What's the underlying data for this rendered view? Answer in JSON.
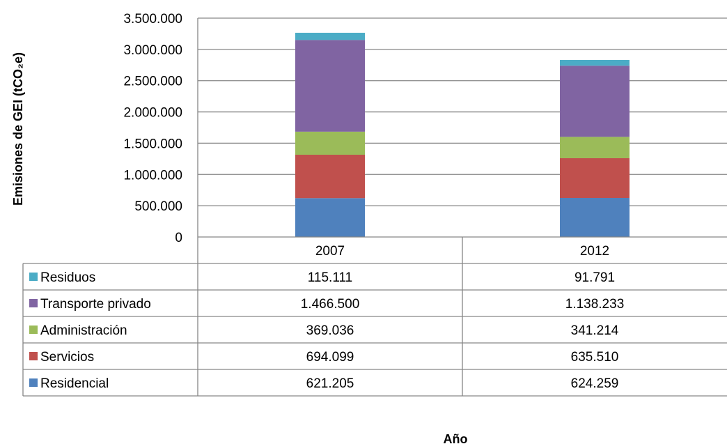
{
  "chart_data": {
    "type": "bar",
    "stacked": true,
    "ylabel": "Emisiones de GEI (tCO₂e)",
    "xlabel": "Año",
    "ylim": [
      0,
      3500000
    ],
    "yticks": [
      0,
      500000,
      1000000,
      1500000,
      2000000,
      2500000,
      3000000,
      3500000
    ],
    "ytick_labels": [
      "0",
      "500.000",
      "1.000.000",
      "1.500.000",
      "2.000.000",
      "2.500.000",
      "3.000.000",
      "3.500.000"
    ],
    "grid": true,
    "legend": "data-table",
    "categories": [
      "2007",
      "2012"
    ],
    "series": [
      {
        "name": "Residencial",
        "color": "#4F81BD",
        "values": [
          621205,
          624259
        ],
        "labels": [
          "621.205",
          "624.259"
        ]
      },
      {
        "name": "Servicios",
        "color": "#C0504D",
        "values": [
          694099,
          635510
        ],
        "labels": [
          "694.099",
          "635.510"
        ]
      },
      {
        "name": "Administración",
        "color": "#9BBB59",
        "values": [
          369036,
          341214
        ],
        "labels": [
          "369.036",
          "341.214"
        ]
      },
      {
        "name": "Transporte privado",
        "color": "#8064A2",
        "values": [
          1466500,
          1138233
        ],
        "labels": [
          "1.466.500",
          "1.138.233"
        ]
      },
      {
        "name": "Residuos",
        "color": "#4BACC6",
        "values": [
          115111,
          91791
        ],
        "labels": [
          "115.111",
          "91.791"
        ]
      }
    ]
  }
}
